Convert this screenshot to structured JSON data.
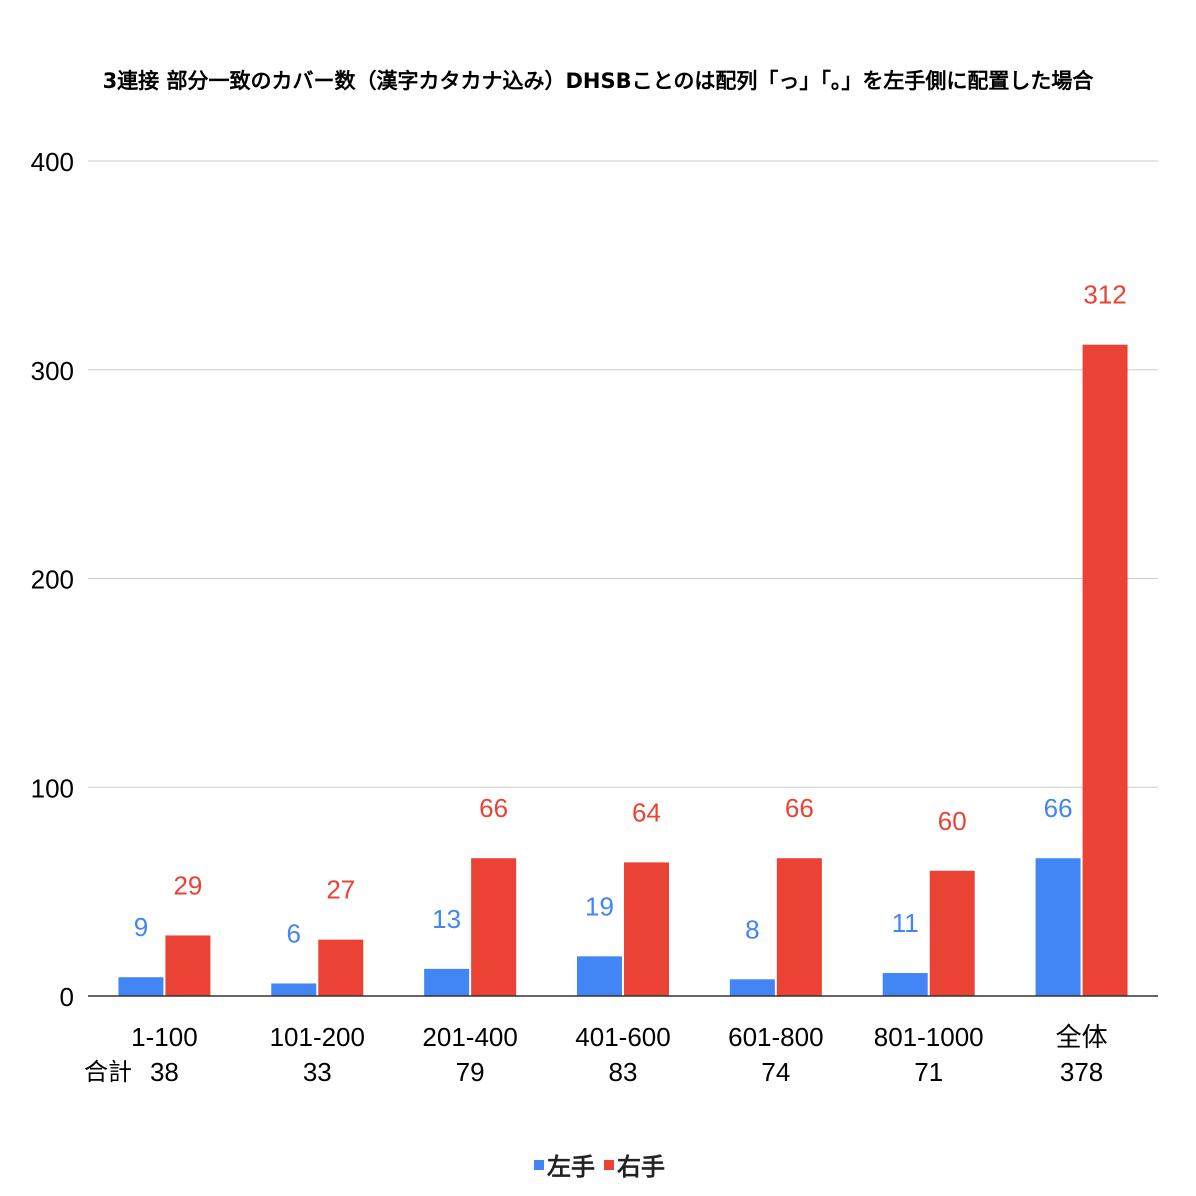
{
  "chart_data": {
    "type": "bar",
    "title": "3連接 部分一致のカバー数（漢字カタカナ込み）DHSBことのは配列「っ」「。」を左手側に配置した場合",
    "categories": [
      "1-100",
      "101-200",
      "201-400",
      "401-600",
      "601-800",
      "801-1000",
      "全体"
    ],
    "series": [
      {
        "name": "左手",
        "color": "#4285f4",
        "values": [
          9,
          6,
          13,
          19,
          8,
          11,
          66
        ]
      },
      {
        "name": "右手",
        "color": "#ea4335",
        "values": [
          29,
          27,
          66,
          64,
          66,
          60,
          312
        ]
      }
    ],
    "totals_label": "合計",
    "totals": [
      38,
      33,
      79,
      83,
      74,
      71,
      378
    ],
    "yticks": [
      0,
      100,
      200,
      300,
      400
    ],
    "ylim": [
      0,
      400
    ],
    "xlabel": "",
    "ylabel": "",
    "grid": true,
    "legend_position": "bottom"
  }
}
